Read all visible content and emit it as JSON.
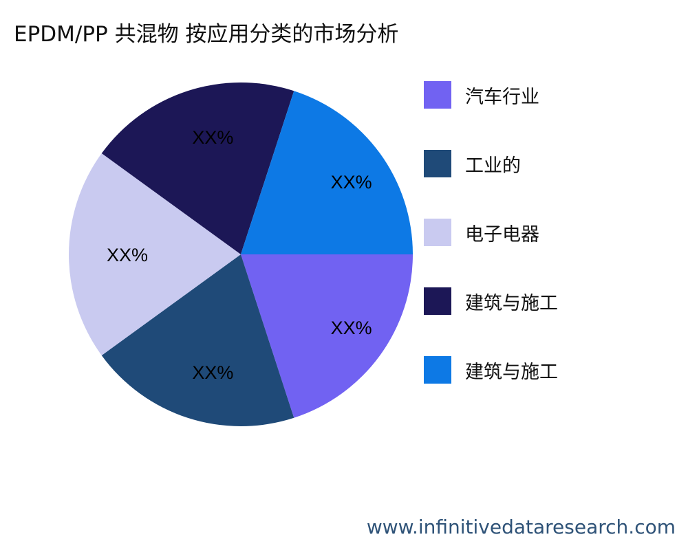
{
  "chart_data": {
    "type": "pie",
    "title": "EPDM/PP 共混物 按应用分类的市场分析",
    "slices": [
      {
        "name": "汽车行业",
        "value": 20,
        "label": "XX%",
        "color": "#7162F2"
      },
      {
        "name": "工业的",
        "value": 20,
        "label": "XX%",
        "color": "#1F4A78"
      },
      {
        "name": "电子电器",
        "value": 20,
        "label": "XX%",
        "color": "#C9CAF0"
      },
      {
        "name": "建筑与施工",
        "value": 20,
        "label": "XX%",
        "color": "#1C1756"
      },
      {
        "name": "建筑与施工",
        "value": 20,
        "label": "XX%",
        "color": "#0D79E5"
      }
    ],
    "legend_position": "right"
  },
  "watermark": "www.infinitivedataresearch.com"
}
